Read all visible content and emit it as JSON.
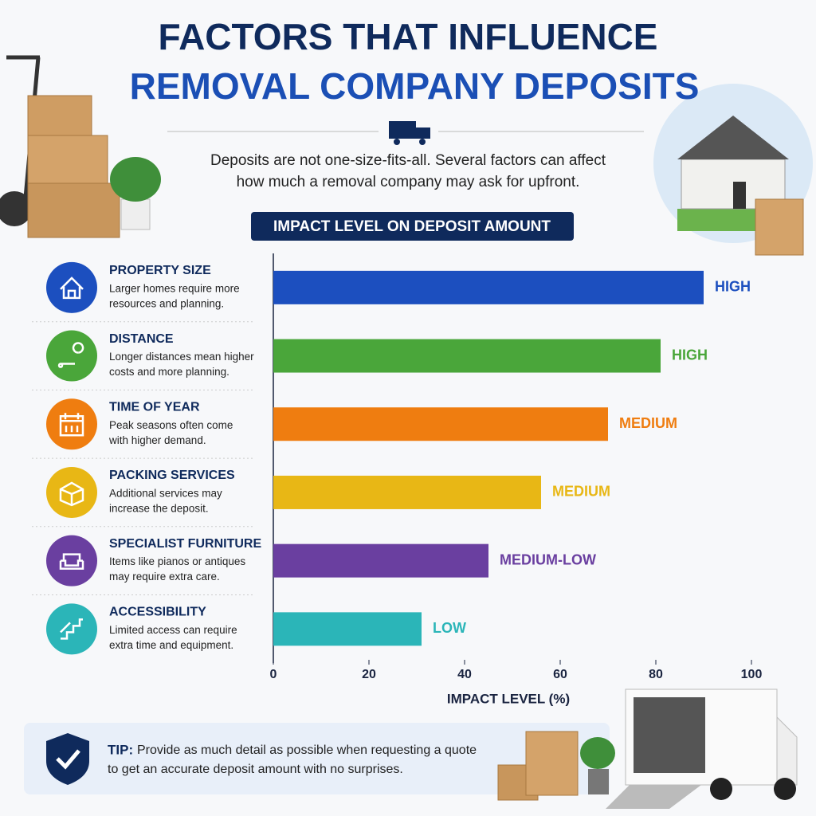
{
  "header": {
    "title_lines": [
      "FACTORS THAT INFLUENCE",
      "REMOVAL COMPANY DEPOSITS"
    ],
    "subtitle_lines": [
      "Deposits are not one-size-fits-all. Several factors can affect",
      "how much a removal company may ask for upfront."
    ]
  },
  "chart_data": {
    "type": "hbar",
    "title": "IMPACT LEVEL ON DEPOSIT AMOUNT",
    "categories": [
      "PROPERTY SIZE",
      "DISTANCE",
      "TIME OF YEAR",
      "PACKING SERVICES",
      "SPECIALIST FURNITURE",
      "ACCESSIBILITY"
    ],
    "values": [
      90,
      81,
      70,
      56,
      45,
      31
    ],
    "levels": [
      "HIGH",
      "HIGH",
      "MEDIUM",
      "MEDIUM",
      "MEDIUM-LOW",
      "LOW"
    ],
    "colors": [
      "#1c4fbf",
      "#4aa63a",
      "#ef7d10",
      "#e8b715",
      "#6a3fa0",
      "#2bb5b8"
    ],
    "xlabel": "IMPACT LEVEL (%)",
    "xlim": [
      0,
      100
    ],
    "xticks": [
      0,
      20,
      40,
      60,
      80,
      100
    ],
    "grid": false
  },
  "factors": [
    {
      "description": [
        "Larger homes require more",
        "resources and planning."
      ]
    },
    {
      "description": [
        "Longer distances mean higher",
        "costs and more planning."
      ]
    },
    {
      "description": [
        "Peak seasons often come",
        "with higher demand."
      ]
    },
    {
      "description": [
        "Additional services may",
        "increase the deposit."
      ]
    },
    {
      "description": [
        "Items like pianos or antiques",
        "may require extra care."
      ]
    },
    {
      "description": [
        "Limited access can require",
        "extra time and equipment."
      ]
    }
  ],
  "tip": {
    "label": "TIP:",
    "lines": [
      "Provide as much detail as possible when requesting a quote",
      "to get an accurate deposit amount with no surprises."
    ]
  }
}
